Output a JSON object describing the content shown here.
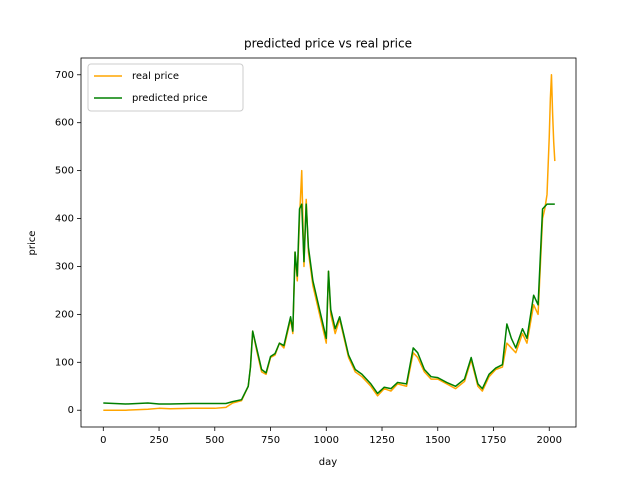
{
  "chart_data": {
    "type": "line",
    "title": "predicted price vs real price",
    "x_label": "day",
    "y_label": "price",
    "x": [
      0,
      100,
      200,
      250,
      300,
      400,
      500,
      550,
      580,
      620,
      650,
      660,
      670,
      690,
      710,
      730,
      750,
      770,
      790,
      810,
      840,
      850,
      860,
      870,
      880,
      890,
      900,
      910,
      920,
      940,
      960,
      980,
      1000,
      1010,
      1020,
      1040,
      1060,
      1080,
      1100,
      1130,
      1160,
      1200,
      1230,
      1260,
      1290,
      1320,
      1360,
      1390,
      1410,
      1440,
      1470,
      1500,
      1540,
      1580,
      1620,
      1650,
      1680,
      1700,
      1730,
      1760,
      1790,
      1810,
      1830,
      1850,
      1880,
      1900,
      1930,
      1950,
      1960,
      1970,
      1980,
      1990,
      2000,
      2005,
      2010,
      2015,
      2020,
      2025
    ],
    "series": [
      {
        "name": "real price",
        "color": "#ffa500",
        "values": [
          0,
          0,
          2,
          4,
          3,
          4,
          4,
          6,
          15,
          20,
          50,
          90,
          165,
          120,
          80,
          75,
          110,
          115,
          140,
          130,
          190,
          160,
          330,
          270,
          400,
          500,
          300,
          440,
          330,
          260,
          220,
          180,
          140,
          290,
          200,
          160,
          190,
          150,
          110,
          80,
          70,
          50,
          30,
          45,
          40,
          55,
          50,
          120,
          110,
          80,
          65,
          65,
          55,
          45,
          60,
          105,
          50,
          40,
          70,
          85,
          90,
          140,
          130,
          120,
          160,
          140,
          220,
          200,
          300,
          400,
          420,
          450,
          570,
          650,
          700,
          620,
          560,
          520
        ]
      },
      {
        "name": "predicted price",
        "color": "#008000",
        "values": [
          15,
          13,
          15,
          13,
          13,
          14,
          14,
          14,
          18,
          22,
          50,
          90,
          165,
          125,
          85,
          78,
          112,
          118,
          140,
          135,
          195,
          165,
          330,
          280,
          420,
          430,
          310,
          430,
          340,
          270,
          230,
          190,
          150,
          290,
          210,
          170,
          195,
          155,
          115,
          85,
          75,
          55,
          35,
          48,
          45,
          58,
          55,
          130,
          120,
          85,
          70,
          68,
          58,
          50,
          65,
          110,
          55,
          45,
          75,
          88,
          95,
          180,
          150,
          130,
          170,
          150,
          240,
          220,
          320,
          420,
          425,
          430,
          430,
          430,
          430,
          430,
          430,
          430
        ]
      }
    ],
    "xlim": [
      -100,
      2120
    ],
    "ylim": [
      -35,
      735
    ],
    "xticks": [
      0,
      250,
      500,
      750,
      1000,
      1250,
      1500,
      1750,
      2000
    ],
    "yticks": [
      0,
      100,
      200,
      300,
      400,
      500,
      600,
      700
    ],
    "legend": "upper left"
  }
}
